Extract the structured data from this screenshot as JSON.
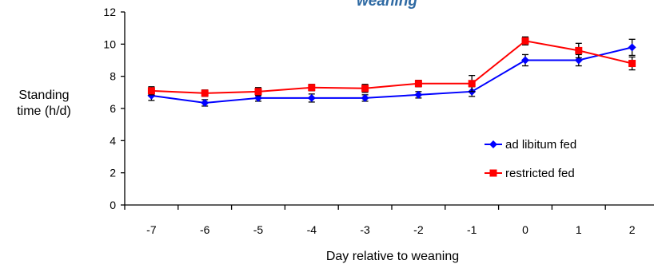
{
  "chart_data": {
    "type": "line",
    "title": "weaning",
    "xlabel": "Day relative to weaning",
    "ylabel": [
      "Standing",
      "time (h/d)"
    ],
    "x": [
      -7,
      -6,
      -5,
      -4,
      -3,
      -2,
      -1,
      0,
      1,
      2
    ],
    "x_tick_labels": [
      "-7",
      "-6",
      "-5",
      "-4",
      "-3",
      "-2",
      "-1",
      "0",
      "1",
      "2"
    ],
    "ylim": [
      0,
      12
    ],
    "y_ticks": [
      0,
      2,
      4,
      6,
      8,
      10,
      12
    ],
    "y_tick_labels": [
      "0",
      "2",
      "4",
      "6",
      "8",
      "10",
      "12"
    ],
    "legend_position": "right",
    "series": [
      {
        "name": "ad libitum fed",
        "color": "#0000ff",
        "marker": "diamond",
        "values": [
          6.8,
          6.35,
          6.65,
          6.65,
          6.65,
          6.85,
          7.05,
          9.0,
          9.0,
          9.8
        ],
        "error": [
          0.3,
          0.2,
          0.2,
          0.25,
          0.2,
          0.2,
          0.3,
          0.35,
          0.35,
          0.5
        ]
      },
      {
        "name": "restricted fed",
        "color": "#ff0000",
        "marker": "square",
        "values": [
          7.1,
          6.95,
          7.05,
          7.3,
          7.25,
          7.55,
          7.55,
          10.2,
          9.6,
          8.8
        ],
        "error": [
          0.25,
          0.2,
          0.25,
          0.2,
          0.25,
          0.2,
          0.5,
          0.25,
          0.45,
          0.4
        ]
      }
    ]
  }
}
